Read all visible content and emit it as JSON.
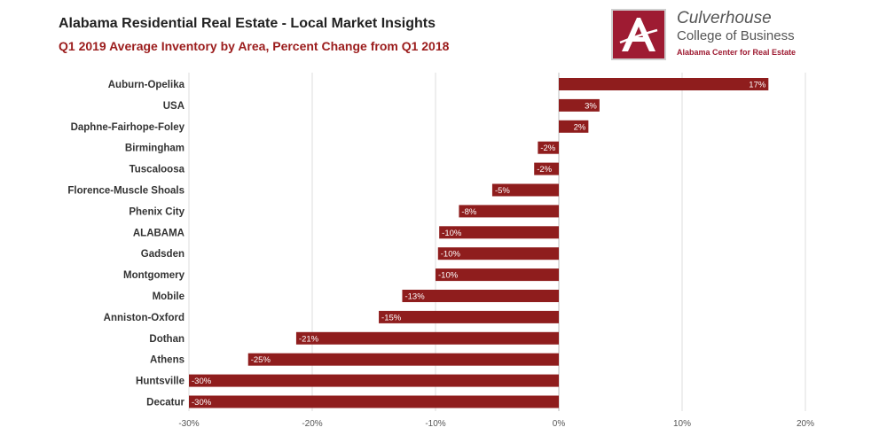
{
  "header": {
    "title": "Alabama Residential Real Estate - Local Market Insights",
    "subtitle": "Q1 2019 Average Inventory by Area, Percent Change from Q1 2018"
  },
  "logo": {
    "line1": "Culverhouse",
    "line2": "College of Business",
    "line3": "Alabama Center for Real Estate",
    "color": "#9e1b32"
  },
  "chart_data": {
    "type": "bar",
    "orientation": "horizontal",
    "title": "Q1 2019 Average Inventory by Area, Percent Change from Q1 2018",
    "xlabel": "",
    "ylabel": "",
    "xlim": [
      -30,
      20
    ],
    "ticks": [
      -30,
      -20,
      -10,
      0,
      10,
      20
    ],
    "tick_labels": [
      "-30%",
      "-20%",
      "-10%",
      "0%",
      "10%",
      "20%"
    ],
    "grid": true,
    "bar_color": "#8f1d1d",
    "categories": [
      "Auburn-Opelika",
      "USA",
      "Daphne-Fairhope-Foley",
      "Birmingham",
      "Tuscaloosa",
      "Florence-Muscle Shoals",
      "Phenix City",
      "ALABAMA",
      "Gadsden",
      "Montgomery",
      "Mobile",
      "Anniston-Oxford",
      "Dothan",
      "Athens",
      "Huntsville",
      "Decatur"
    ],
    "values": [
      17,
      3.3,
      2.4,
      -1.7,
      -2,
      -5.4,
      -8.1,
      -9.7,
      -9.8,
      -10,
      -12.7,
      -14.6,
      -21.3,
      -25.2,
      -30,
      -30
    ],
    "value_labels": [
      "17%",
      "3%",
      "2%",
      "-2%",
      "-2%",
      "-5%",
      "-8%",
      "-10%",
      "-10%",
      "-10%",
      "-13%",
      "-15%",
      "-21%",
      "-25%",
      "-30%",
      "-30%"
    ]
  }
}
